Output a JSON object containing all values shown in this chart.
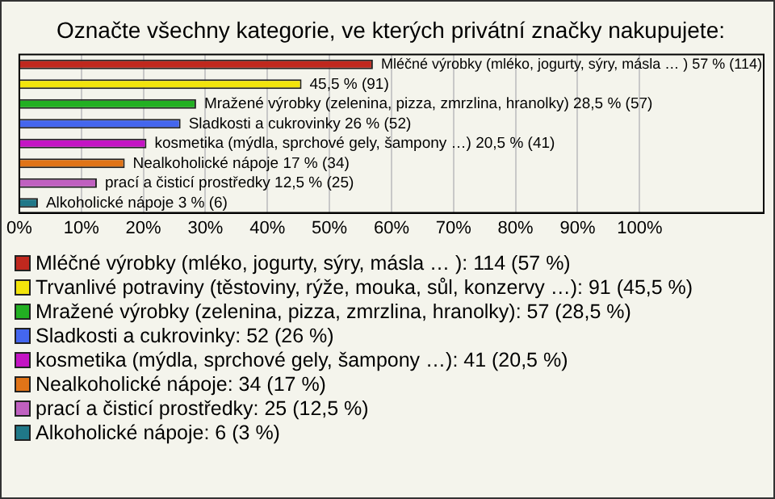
{
  "chart_data": {
    "type": "bar",
    "orientation": "horizontal",
    "title": "Označte všechny kategorie, ve kterých privátní značky nakupujete:",
    "categories": [
      null,
      null,
      null,
      null,
      null,
      null,
      null,
      null
    ],
    "series": [
      {
        "name": "Mléčné výrobky (mléko, jogurty, sýry, másla … ): 114 (57 %)",
        "color": "#c0281e",
        "values": [
          57,
          null,
          null,
          null,
          null,
          null,
          null,
          null
        ],
        "value_labels": [
          "Mléčné výrobky (mléko, jogurty, sýry, másla … ) 57 % (114)",
          null,
          null,
          null,
          null,
          null,
          null,
          null
        ]
      },
      {
        "name": "Trvanlivé potraviny (těstoviny, rýže, mouka, sůl, konzervy …): 91 (45,5 %)",
        "color": "#f2e40c",
        "values": [
          null,
          45.5,
          null,
          null,
          null,
          null,
          null,
          null
        ],
        "value_labels": [
          null,
          "45,5 % (91)",
          null,
          null,
          null,
          null,
          null,
          null
        ]
      },
      {
        "name": "Mražené výrobky (zelenina, pizza, zmrzlina, hranolky): 57 (28,5 %)",
        "color": "#22b022",
        "values": [
          null,
          null,
          28.5,
          null,
          null,
          null,
          null,
          null
        ],
        "value_labels": [
          null,
          null,
          "Mražené výrobky (zelenina, pizza, zmrzlina, hranolky) 28,5 % (57)",
          null,
          null,
          null,
          null,
          null
        ]
      },
      {
        "name": "Sladkosti a cukrovinky: 52 (26 %)",
        "color": "#4466ee",
        "values": [
          null,
          null,
          null,
          26,
          null,
          null,
          null,
          null
        ],
        "value_labels": [
          null,
          null,
          null,
          "Sladkosti a cukrovinky 26 % (52)",
          null,
          null,
          null,
          null
        ]
      },
      {
        "name": "kosmetika (mýdla, sprchové gely, šampony …): 41 (20,5 %)",
        "color": "#c414c4",
        "values": [
          null,
          null,
          null,
          null,
          20.5,
          null,
          null,
          null
        ],
        "value_labels": [
          null,
          null,
          null,
          null,
          "kosmetika (mýdla, sprchové gely, šampony …) 20,5 % (41)",
          null,
          null,
          null
        ]
      },
      {
        "name": "Nealkoholické nápoje: 34 (17 %)",
        "color": "#e07418",
        "values": [
          null,
          null,
          null,
          null,
          null,
          17,
          null,
          null
        ],
        "value_labels": [
          null,
          null,
          null,
          null,
          null,
          "Nealkoholické nápoje 17 % (34)",
          null,
          null
        ]
      },
      {
        "name": "prací a čisticí prostředky: 25 (12,5 %)",
        "color": "#c060c0",
        "values": [
          null,
          null,
          null,
          null,
          null,
          null,
          12.5,
          null
        ],
        "value_labels": [
          null,
          null,
          null,
          null,
          null,
          null,
          "prací a čisticí prostředky 12,5 % (25)",
          null
        ]
      },
      {
        "name": "Alkoholické nápoje: 6 (3 %)",
        "color": "#207888",
        "values": [
          null,
          null,
          null,
          null,
          null,
          null,
          null,
          3
        ],
        "value_labels": [
          null,
          null,
          null,
          null,
          null,
          null,
          null,
          "Alkoholické nápoje 3 % (6)"
        ]
      }
    ],
    "xlim": [
      0,
      120
    ],
    "xticks": [
      {
        "value": 0,
        "label": "0%"
      },
      {
        "value": 10,
        "label": "10%"
      },
      {
        "value": 20,
        "label": "20%"
      },
      {
        "value": 30,
        "label": "30%"
      },
      {
        "value": 40,
        "label": "40%"
      },
      {
        "value": 50,
        "label": "50%"
      },
      {
        "value": 60,
        "label": "60%"
      },
      {
        "value": 70,
        "label": "70%"
      },
      {
        "value": 80,
        "label": "80%"
      },
      {
        "value": 90,
        "label": "90%"
      },
      {
        "value": 100,
        "label": "100%"
      }
    ],
    "grid": "x",
    "legend": "bottom",
    "tick_labels": "x"
  }
}
